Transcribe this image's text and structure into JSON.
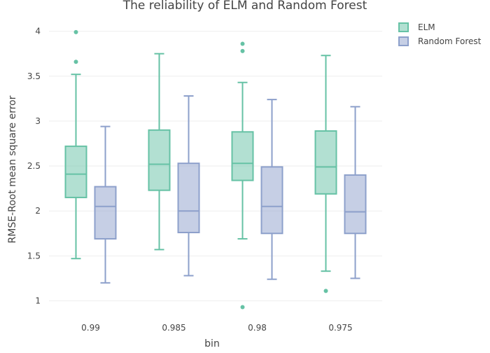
{
  "chart_data": {
    "type": "box",
    "title": "The reliability of ELM and Random Forest",
    "xlabel": "bin",
    "ylabel": "RMSE-Root mean square error",
    "categories": [
      "0.99",
      "0.985",
      "0.98",
      "0.975"
    ],
    "ylim": [
      0.75,
      4.2
    ],
    "yticks": [
      1,
      1.5,
      2,
      2.5,
      3,
      3.5,
      4
    ],
    "ytick_labels": [
      "1",
      "1.5",
      "2",
      "2.5",
      "3",
      "3.5",
      "4"
    ],
    "grid": "horizontal",
    "legend_position": "top-right",
    "series": [
      {
        "name": "ELM",
        "color": "#66c2a5",
        "boxes": [
          {
            "category": "0.99",
            "min": 1.47,
            "q1": 2.15,
            "median": 2.41,
            "q3": 2.72,
            "max": 3.52,
            "outliers": [
              3.66,
              3.99
            ]
          },
          {
            "category": "0.985",
            "min": 1.57,
            "q1": 2.23,
            "median": 2.52,
            "q3": 2.9,
            "max": 3.75,
            "outliers": []
          },
          {
            "category": "0.98",
            "min": 1.69,
            "q1": 2.34,
            "median": 2.53,
            "q3": 2.88,
            "max": 3.43,
            "outliers": [
              3.78,
              3.86,
              0.93
            ]
          },
          {
            "category": "0.975",
            "min": 1.33,
            "q1": 2.19,
            "median": 2.49,
            "q3": 2.89,
            "max": 3.73,
            "outliers": [
              1.11
            ]
          }
        ]
      },
      {
        "name": "Random Forest",
        "color": "#8da0cb",
        "boxes": [
          {
            "category": "0.99",
            "min": 1.2,
            "q1": 1.69,
            "median": 2.05,
            "q3": 2.27,
            "max": 2.94,
            "outliers": []
          },
          {
            "category": "0.985",
            "min": 1.28,
            "q1": 1.76,
            "median": 2.0,
            "q3": 2.53,
            "max": 3.28,
            "outliers": []
          },
          {
            "category": "0.98",
            "min": 1.24,
            "q1": 1.75,
            "median": 2.05,
            "q3": 2.49,
            "max": 3.24,
            "outliers": []
          },
          {
            "category": "0.975",
            "min": 1.25,
            "q1": 1.75,
            "median": 1.99,
            "q3": 2.4,
            "max": 3.16,
            "outliers": []
          }
        ]
      }
    ]
  }
}
